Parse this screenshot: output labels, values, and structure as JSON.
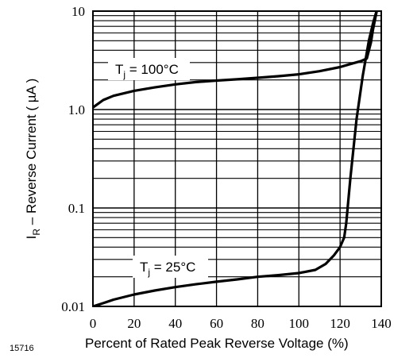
{
  "figure_id": "15716",
  "chart_data": {
    "type": "line",
    "xlabel": "Percent of Rated Peak Reverse Voltage (%)",
    "ylabel_main": "I",
    "ylabel_sub": "R",
    "ylabel_rest": " – Reverse Current ( µA )",
    "x_ticks": [
      "0",
      "20",
      "40",
      "60",
      "80",
      "100",
      "120",
      "140"
    ],
    "y_ticks": [
      "0.01",
      "0.1",
      "1.0",
      "10"
    ],
    "xlim": [
      0,
      140
    ],
    "ylim": [
      0.01,
      10
    ],
    "y_scale": "log",
    "grid": true,
    "series": [
      {
        "name": "Tj = 100°C",
        "label_main": "T",
        "label_sub": "j",
        "label_rest": " = 100°C",
        "x": [
          0,
          5,
          10,
          20,
          30,
          40,
          50,
          60,
          70,
          80,
          90,
          100,
          110,
          120,
          125,
          130,
          133,
          135,
          136,
          138
        ],
        "y": [
          1.05,
          1.25,
          1.38,
          1.55,
          1.68,
          1.8,
          1.9,
          1.97,
          2.03,
          2.1,
          2.18,
          2.28,
          2.45,
          2.7,
          2.9,
          3.1,
          3.3,
          4.8,
          6.5,
          10.5
        ]
      },
      {
        "name": "Tj = 25°C",
        "label_main": "T",
        "label_sub": "j",
        "label_rest": " = 25°C",
        "x": [
          0,
          5,
          10,
          20,
          30,
          40,
          50,
          60,
          70,
          80,
          90,
          100,
          108,
          113,
          117,
          120,
          122,
          123,
          125,
          128,
          131,
          134,
          136,
          138
        ],
        "y": [
          0.01,
          0.0108,
          0.0117,
          0.0132,
          0.0145,
          0.0157,
          0.0168,
          0.0178,
          0.0188,
          0.02,
          0.0208,
          0.0218,
          0.0235,
          0.027,
          0.033,
          0.04,
          0.05,
          0.07,
          0.2,
          0.8,
          2.2,
          5.0,
          7.5,
          10.5
        ]
      }
    ]
  }
}
